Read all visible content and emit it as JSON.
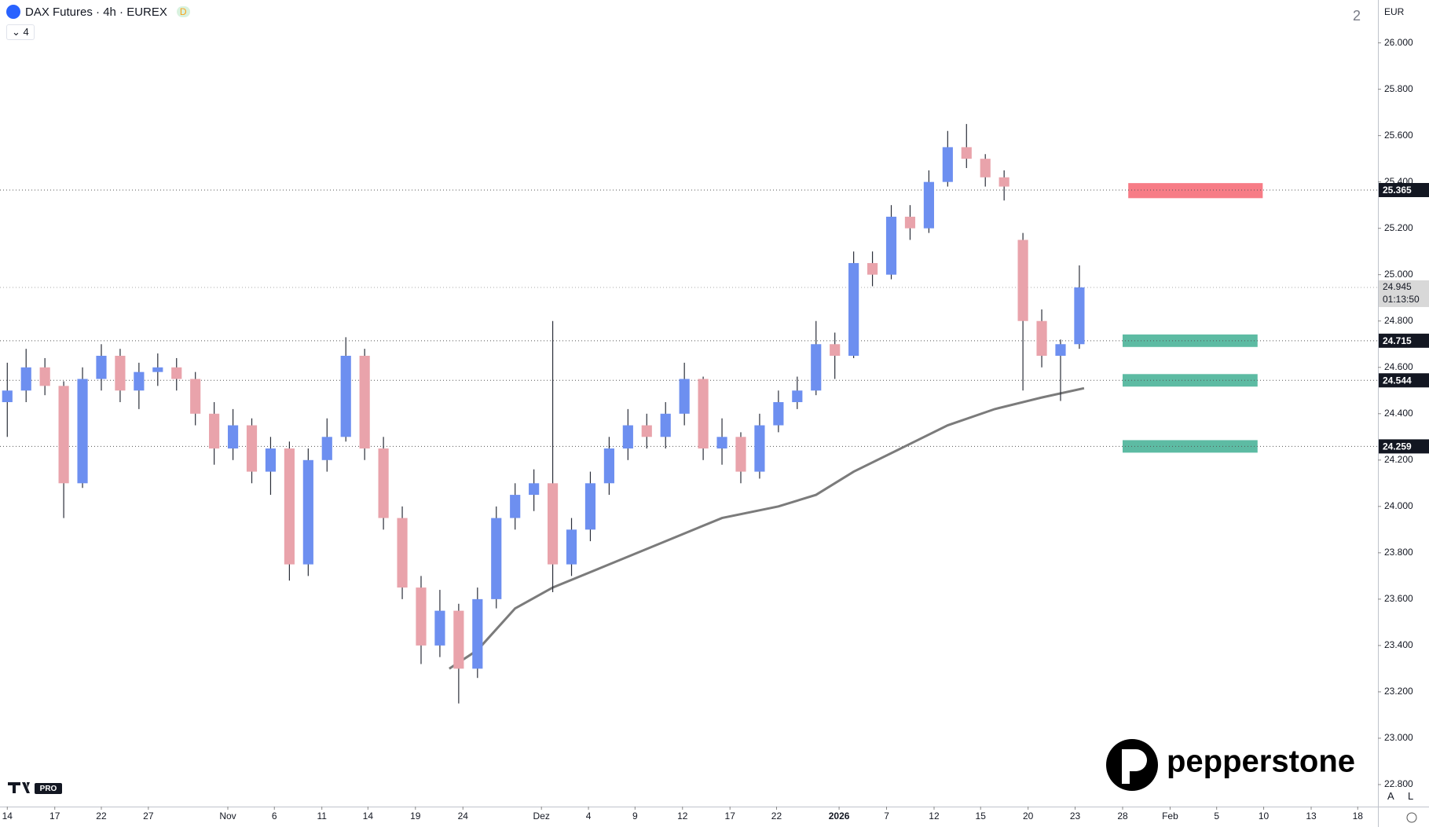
{
  "chart_data": {
    "type": "candlestick",
    "title": "DAX Futures · 4h · EUREX",
    "badge": "D",
    "indicator_count": "4",
    "layout_count": "2",
    "currency": "EUR",
    "scale_buttons": [
      "A",
      "L"
    ],
    "logo_text": "pepperstone",
    "tv_badge": "PRO",
    "up_color": "#6d8ff0",
    "down_color": "#e9a3ab",
    "xlim": [
      -0.155,
      29.15
    ],
    "ylim": [
      22705,
      26185
    ],
    "xticks": [
      {
        "value": 0,
        "label": "14"
      },
      {
        "value": 1.01,
        "label": "17"
      },
      {
        "value": 2.0,
        "label": "22"
      },
      {
        "value": 3.0,
        "label": "27"
      },
      {
        "value": 4.69,
        "label": "Nov"
      },
      {
        "value": 5.68,
        "label": "6"
      },
      {
        "value": 6.69,
        "label": "11"
      },
      {
        "value": 7.67,
        "label": "14"
      },
      {
        "value": 8.68,
        "label": "19"
      },
      {
        "value": 9.69,
        "label": "24"
      },
      {
        "value": 11.36,
        "label": "Dez"
      },
      {
        "value": 12.36,
        "label": "4"
      },
      {
        "value": 13.35,
        "label": "9"
      },
      {
        "value": 14.36,
        "label": "12"
      },
      {
        "value": 15.37,
        "label": "17"
      },
      {
        "value": 16.36,
        "label": "22"
      },
      {
        "value": 17.69,
        "label": "2026"
      },
      {
        "value": 18.7,
        "label": "7"
      },
      {
        "value": 19.71,
        "label": "12"
      },
      {
        "value": 20.7,
        "label": "15"
      },
      {
        "value": 21.71,
        "label": "20"
      },
      {
        "value": 22.71,
        "label": "23"
      },
      {
        "value": 23.72,
        "label": "28"
      },
      {
        "value": 24.73,
        "label": "Feb"
      },
      {
        "value": 25.72,
        "label": "5"
      },
      {
        "value": 26.72,
        "label": "10"
      },
      {
        "value": 27.73,
        "label": "13"
      },
      {
        "value": 28.72,
        "label": "18"
      }
    ],
    "yticks": [
      {
        "value": 22800,
        "label": "22.800"
      },
      {
        "value": 23000,
        "label": "23.000"
      },
      {
        "value": 23200,
        "label": "23.200"
      },
      {
        "value": 23400,
        "label": "23.400"
      },
      {
        "value": 23600,
        "label": "23.600"
      },
      {
        "value": 23800,
        "label": "23.800"
      },
      {
        "value": 24000,
        "label": "24.000"
      },
      {
        "value": 24200,
        "label": "24.200"
      },
      {
        "value": 24400,
        "label": "24.400"
      },
      {
        "value": 24600,
        "label": "24.600"
      },
      {
        "value": 24800,
        "label": "24.800"
      },
      {
        "value": 25000,
        "label": "25.000"
      },
      {
        "value": 25200,
        "label": "25.200"
      },
      {
        "value": 25400,
        "label": "25.400"
      },
      {
        "value": 25600,
        "label": "25.600"
      },
      {
        "value": 25800,
        "label": "25.800"
      },
      {
        "value": 26000,
        "label": "26.000"
      }
    ],
    "x": [
      0,
      0.4,
      0.8,
      1.2,
      1.6,
      2.0,
      2.4,
      2.8,
      3.2,
      3.6,
      4.0,
      4.4,
      4.8,
      5.2,
      5.6,
      6.0,
      6.4,
      6.8,
      7.2,
      7.6,
      8.0,
      8.4,
      8.8,
      9.2,
      9.6,
      10.0,
      10.4,
      10.8,
      11.2,
      11.6,
      12.0,
      12.4,
      12.8,
      13.2,
      13.6,
      14.0,
      14.4,
      14.8,
      15.2,
      15.6,
      16.0,
      16.4,
      16.8,
      17.2,
      17.6,
      18.0,
      18.4,
      18.8,
      19.2,
      19.6,
      20.0,
      20.4,
      20.8,
      21.2,
      21.6,
      22.0,
      22.4,
      22.8
    ],
    "ohlc": [
      [
        24450,
        24620,
        24300,
        24500
      ],
      [
        24500,
        24680,
        24450,
        24600
      ],
      [
        24600,
        24640,
        24480,
        24520
      ],
      [
        24520,
        24540,
        23950,
        24100
      ],
      [
        24100,
        24600,
        24080,
        24550
      ],
      [
        24550,
        24700,
        24500,
        24650
      ],
      [
        24650,
        24680,
        24450,
        24500
      ],
      [
        24500,
        24620,
        24420,
        24580
      ],
      [
        24580,
        24660,
        24520,
        24600
      ],
      [
        24600,
        24640,
        24500,
        24550
      ],
      [
        24550,
        24580,
        24350,
        24400
      ],
      [
        24400,
        24450,
        24180,
        24250
      ],
      [
        24250,
        24420,
        24200,
        24350
      ],
      [
        24350,
        24380,
        24100,
        24150
      ],
      [
        24150,
        24300,
        24050,
        24250
      ],
      [
        24250,
        24280,
        23680,
        23750
      ],
      [
        23750,
        24250,
        23700,
        24200
      ],
      [
        24200,
        24380,
        24150,
        24300
      ],
      [
        24300,
        24730,
        24280,
        24650
      ],
      [
        24650,
        24680,
        24200,
        24250
      ],
      [
        24250,
        24300,
        23900,
        23950
      ],
      [
        23950,
        24000,
        23600,
        23650
      ],
      [
        23650,
        23700,
        23320,
        23400
      ],
      [
        23400,
        23640,
        23350,
        23550
      ],
      [
        23550,
        23580,
        23150,
        23300
      ],
      [
        23300,
        23650,
        23260,
        23600
      ],
      [
        23600,
        24000,
        23560,
        23950
      ],
      [
        23950,
        24100,
        23900,
        24050
      ],
      [
        24050,
        24160,
        23980,
        24100
      ],
      [
        24100,
        24800,
        23630,
        23750
      ],
      [
        23750,
        23950,
        23700,
        23900
      ],
      [
        23900,
        24150,
        23850,
        24100
      ],
      [
        24100,
        24300,
        24050,
        24250
      ],
      [
        24250,
        24420,
        24200,
        24350
      ],
      [
        24350,
        24400,
        24250,
        24300
      ],
      [
        24300,
        24450,
        24250,
        24400
      ],
      [
        24400,
        24620,
        24350,
        24550
      ],
      [
        24550,
        24560,
        24200,
        24250
      ],
      [
        24250,
        24380,
        24180,
        24300
      ],
      [
        24300,
        24320,
        24100,
        24150
      ],
      [
        24150,
        24400,
        24120,
        24350
      ],
      [
        24350,
        24500,
        24320,
        24450
      ],
      [
        24450,
        24560,
        24420,
        24500
      ],
      [
        24500,
        24800,
        24480,
        24700
      ],
      [
        24700,
        24750,
        24550,
        24650
      ],
      [
        24650,
        25100,
        24640,
        25050
      ],
      [
        25050,
        25100,
        24950,
        25000
      ],
      [
        25000,
        25300,
        24980,
        25250
      ],
      [
        25250,
        25300,
        25150,
        25200
      ],
      [
        25200,
        25450,
        25180,
        25400
      ],
      [
        25400,
        25620,
        25380,
        25550
      ],
      [
        25550,
        25650,
        25460,
        25500
      ],
      [
        25500,
        25520,
        25380,
        25420
      ],
      [
        25420,
        25450,
        25320,
        25380
      ],
      [
        25150,
        25180,
        24500,
        24800
      ],
      [
        24800,
        24850,
        24600,
        24650
      ],
      [
        24650,
        24720,
        24455,
        24700
      ],
      [
        24700,
        25040,
        24680,
        24945
      ]
    ],
    "series": [
      {
        "type": "line",
        "color": "#7b7b7b",
        "x": [
          9.4,
          10.0,
          10.8,
          11.6,
          12.8,
          14.0,
          15.2,
          16.4,
          17.2,
          18.0,
          19.0,
          20.0,
          21.0,
          22.0,
          22.9
        ],
        "values": [
          23300,
          23380,
          23560,
          23650,
          23750,
          23850,
          23950,
          24000,
          24050,
          24150,
          24250,
          24350,
          24420,
          24470,
          24510
        ]
      }
    ],
    "levels": [
      {
        "value": 25365,
        "label": "25.365",
        "color": "#131722"
      },
      {
        "value": 24715,
        "label": "24.715",
        "color": "#131722"
      },
      {
        "value": 24544,
        "label": "24.544",
        "color": "#131722"
      },
      {
        "value": 24259,
        "label": "24.259",
        "color": "#131722"
      }
    ],
    "current_price": {
      "value": 24945,
      "label": "24.945",
      "countdown": "01:13:50",
      "color": "#d8d8d8"
    },
    "zones": [
      {
        "color": "#f77c86",
        "xlim": [
          23.84,
          26.7
        ],
        "ylim": [
          25330,
          25395
        ]
      },
      {
        "color": "#5dbba3",
        "xlim": [
          23.72,
          26.59
        ],
        "ylim": [
          24688,
          24742
        ]
      },
      {
        "color": "#5dbba3",
        "xlim": [
          23.72,
          26.59
        ],
        "ylim": [
          24517,
          24571
        ]
      },
      {
        "color": "#5dbba3",
        "xlim": [
          23.72,
          26.59
        ],
        "ylim": [
          24232,
          24286
        ]
      }
    ]
  }
}
